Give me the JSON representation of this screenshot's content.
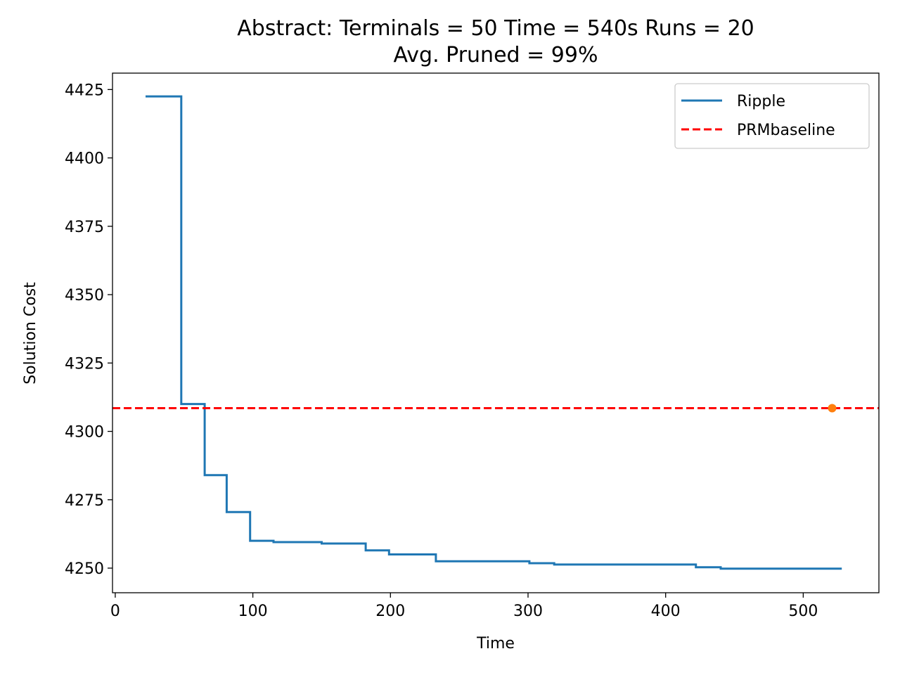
{
  "chart_data": {
    "type": "line",
    "title": "Abstract:  Terminals = 50  Time = 540s  Runs = 20",
    "subtitle": "Avg. Pruned = 99%",
    "xlabel": "Time",
    "ylabel": "Solution Cost",
    "xlim": [
      -2,
      555
    ],
    "ylim": [
      4241,
      4431
    ],
    "x_ticks": [
      0,
      100,
      200,
      300,
      400,
      500
    ],
    "y_ticks": [
      4250,
      4275,
      4300,
      4325,
      4350,
      4375,
      4400,
      4425
    ],
    "grid": false,
    "legend_position": "top-right",
    "colors": {
      "ripple": "#1f77b4",
      "baseline": "#ff0000",
      "marker": "#ff7f0e"
    },
    "series": [
      {
        "name": "Ripple",
        "style": "steps-post",
        "x": [
          22,
          48,
          65,
          81,
          98,
          115,
          150,
          182,
          199,
          233,
          301,
          319,
          422,
          440,
          528
        ],
        "y": [
          4422.5,
          4310,
          4284,
          4270.5,
          4260,
          4259.5,
          4259,
          4256.5,
          4255,
          4252.5,
          4251.8,
          4251.3,
          4250.3,
          4249.8,
          4249.8
        ]
      },
      {
        "name": "PRMbaseline",
        "style": "dashed-horizontal",
        "y": 4308.5
      }
    ],
    "marker_point": {
      "x": 521,
      "y": 4308.5
    }
  }
}
